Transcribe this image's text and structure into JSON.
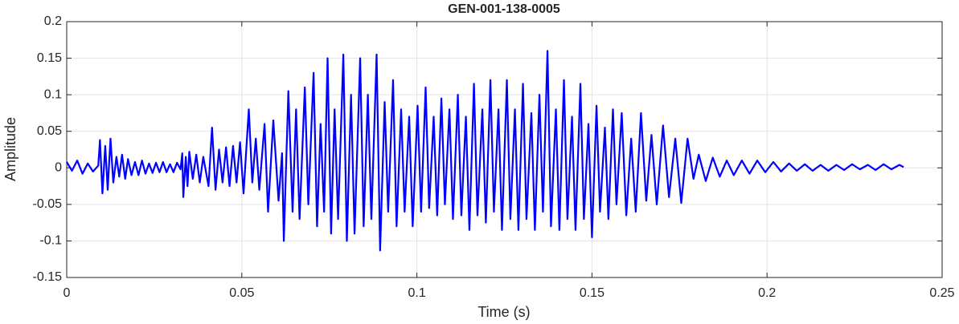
{
  "chart_data": {
    "type": "line",
    "title": "GEN-001-138-0005",
    "xlabel": "Time (s)",
    "ylabel": "Amplitude",
    "x": [
      0,
      0.0015,
      0.003,
      0.0045,
      0.006,
      0.0075,
      0.009,
      0.0095,
      0.0102,
      0.011,
      0.0117,
      0.0125,
      0.0133,
      0.0142,
      0.015,
      0.0158,
      0.0167,
      0.0175,
      0.0185,
      0.0195,
      0.0205,
      0.0215,
      0.0225,
      0.0235,
      0.0245,
      0.0255,
      0.0265,
      0.0275,
      0.0285,
      0.0295,
      0.0305,
      0.0315,
      0.0325,
      0.033,
      0.0333,
      0.034,
      0.0345,
      0.035,
      0.036,
      0.037,
      0.038,
      0.039,
      0.0405,
      0.0415,
      0.0425,
      0.0435,
      0.0445,
      0.0455,
      0.0465,
      0.0475,
      0.0485,
      0.0495,
      0.0505,
      0.052,
      0.053,
      0.054,
      0.055,
      0.0565,
      0.0575,
      0.059,
      0.0605,
      0.0615,
      0.062,
      0.0633,
      0.0645,
      0.0655,
      0.0665,
      0.068,
      0.069,
      0.0705,
      0.0715,
      0.0725,
      0.0735,
      0.0745,
      0.0755,
      0.0765,
      0.0775,
      0.079,
      0.08,
      0.0812,
      0.0822,
      0.0838,
      0.0848,
      0.086,
      0.087,
      0.0885,
      0.0895,
      0.0908,
      0.0918,
      0.0932,
      0.0942,
      0.0955,
      0.0965,
      0.0978,
      0.0988,
      0.1002,
      0.1012,
      0.1025,
      0.1035,
      0.1048,
      0.1058,
      0.107,
      0.108,
      0.1093,
      0.1103,
      0.1117,
      0.1127,
      0.114,
      0.115,
      0.1163,
      0.1173,
      0.1187,
      0.1197,
      0.121,
      0.122,
      0.1233,
      0.1243,
      0.1257,
      0.1267,
      0.128,
      0.129,
      0.1303,
      0.1313,
      0.1327,
      0.1337,
      0.135,
      0.136,
      0.1373,
      0.1383,
      0.1397,
      0.1407,
      0.142,
      0.143,
      0.1443,
      0.1453,
      0.1467,
      0.1477,
      0.149,
      0.15,
      0.1513,
      0.1523,
      0.1537,
      0.1547,
      0.156,
      0.157,
      0.1585,
      0.1598,
      0.1612,
      0.1625,
      0.164,
      0.1655,
      0.167,
      0.1685,
      0.1703,
      0.172,
      0.1738,
      0.1755,
      0.1773,
      0.179,
      0.1805,
      0.1825,
      0.1845,
      0.1865,
      0.1885,
      0.1905,
      0.1928,
      0.195,
      0.1972,
      0.1995,
      0.2018,
      0.204,
      0.2063,
      0.2085,
      0.2108,
      0.213,
      0.2153,
      0.2175,
      0.2198,
      0.222,
      0.2243,
      0.2265,
      0.2288,
      0.231,
      0.2333,
      0.2355,
      0.2378,
      0.239
    ],
    "series": [
      {
        "color": "#0000ff",
        "values": [
          0.008,
          -0.004,
          0.01,
          -0.008,
          0.006,
          -0.005,
          0.003,
          0.038,
          -0.035,
          0.03,
          -0.03,
          0.04,
          -0.02,
          0.015,
          -0.012,
          0.018,
          -0.015,
          0.012,
          -0.01,
          0.008,
          -0.01,
          0.01,
          -0.008,
          0.006,
          -0.007,
          0.007,
          -0.006,
          0.008,
          -0.006,
          0.005,
          -0.006,
          0.007,
          -0.002,
          0.02,
          -0.04,
          0.015,
          -0.025,
          0.022,
          -0.015,
          0.018,
          -0.02,
          0.015,
          -0.025,
          0.055,
          -0.03,
          0.025,
          -0.02,
          0.028,
          -0.025,
          0.03,
          -0.02,
          0.035,
          -0.035,
          0.08,
          -0.02,
          0.04,
          -0.03,
          0.06,
          -0.06,
          0.065,
          -0.045,
          0.02,
          -0.1,
          0.105,
          -0.06,
          0.08,
          -0.07,
          0.11,
          -0.05,
          0.13,
          -0.08,
          0.06,
          -0.06,
          0.15,
          -0.09,
          0.08,
          -0.07,
          0.155,
          -0.1,
          0.1,
          -0.09,
          0.15,
          -0.08,
          0.1,
          -0.07,
          0.155,
          -0.113,
          0.09,
          -0.06,
          0.12,
          -0.08,
          0.08,
          -0.06,
          0.07,
          -0.08,
          0.085,
          -0.06,
          0.11,
          -0.055,
          0.07,
          -0.065,
          0.095,
          -0.05,
          0.08,
          -0.07,
          0.1,
          -0.065,
          0.07,
          -0.085,
          0.115,
          -0.065,
          0.08,
          -0.075,
          0.12,
          -0.06,
          0.08,
          -0.085,
          0.12,
          -0.07,
          0.08,
          -0.085,
          0.115,
          -0.07,
          0.075,
          -0.085,
          0.1,
          -0.06,
          0.16,
          -0.08,
          0.08,
          -0.085,
          0.12,
          -0.07,
          0.07,
          -0.085,
          0.115,
          -0.07,
          0.06,
          -0.095,
          0.085,
          -0.06,
          0.055,
          -0.07,
          0.08,
          -0.05,
          0.075,
          -0.065,
          0.04,
          -0.06,
          0.075,
          -0.045,
          0.045,
          -0.05,
          0.058,
          -0.04,
          0.04,
          -0.048,
          0.04,
          -0.015,
          0.018,
          -0.018,
          0.014,
          -0.012,
          0.01,
          -0.01,
          0.01,
          -0.008,
          0.01,
          -0.006,
          0.008,
          -0.005,
          0.006,
          -0.004,
          0.005,
          -0.004,
          0.004,
          -0.004,
          0.004,
          -0.003,
          0.005,
          -0.002,
          0.004,
          -0.003,
          0.005,
          -0.002,
          0.004,
          0.001
        ]
      }
    ],
    "xlim": [
      0,
      0.25
    ],
    "xticks": [
      0,
      0.05,
      0.1,
      0.15,
      0.2,
      0.25
    ],
    "ylim": [
      -0.15,
      0.2
    ],
    "yticks": [
      -0.15,
      -0.1,
      -0.05,
      0,
      0.05,
      0.1,
      0.15,
      0.2
    ],
    "grid": true
  }
}
